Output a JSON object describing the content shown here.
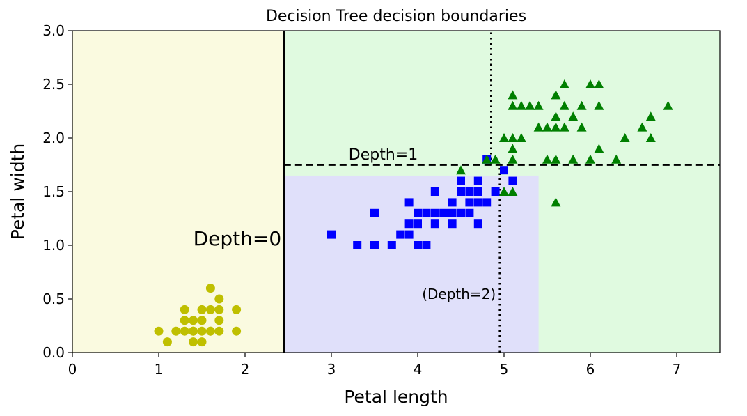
{
  "chart_data": {
    "type": "scatter",
    "title": "Decision Tree decision boundaries",
    "xlabel": "Petal length",
    "ylabel": "Petal width",
    "xlim": [
      0,
      7.5
    ],
    "ylim": [
      0,
      3
    ],
    "xticks": [
      "0",
      "1",
      "2",
      "3",
      "4",
      "5",
      "6",
      "7"
    ],
    "yticks": [
      "0.0",
      "0.5",
      "1.0",
      "1.5",
      "2.0",
      "2.5",
      "3.0"
    ],
    "grid": false,
    "regions": [
      {
        "x0": 0,
        "x1": 2.45,
        "y0": 0,
        "y1": 3,
        "color": "#fafae0"
      },
      {
        "x0": 2.45,
        "x1": 7.5,
        "y0": 0,
        "y1": 3,
        "color": "#e0fae0"
      },
      {
        "x0": 2.45,
        "x1": 5.4,
        "y0": 0,
        "y1": 1.65,
        "color": "#e0e0fa"
      }
    ],
    "boundaries": [
      {
        "type": "v",
        "x": 2.45,
        "y0": 0,
        "y1": 3,
        "style": "solid"
      },
      {
        "type": "h",
        "y": 1.75,
        "x0": 2.45,
        "x1": 7.5,
        "style": "dashed"
      },
      {
        "type": "v",
        "x": 4.95,
        "y0": 0,
        "y1": 1.75,
        "style": "dotted"
      },
      {
        "type": "v",
        "x": 4.85,
        "y0": 1.75,
        "y1": 3,
        "style": "dotted"
      }
    ],
    "annotations": [
      {
        "text": "Depth=0",
        "x": 1.4,
        "y": 1.0,
        "size": 28
      },
      {
        "text": "Depth=1",
        "x": 3.2,
        "y": 1.8,
        "size": 22
      },
      {
        "text": "(Depth=2)",
        "x": 4.05,
        "y": 0.5,
        "size": 20
      }
    ],
    "series": [
      {
        "marker": "circle",
        "color": "#bfbf00",
        "points": [
          [
            1.0,
            0.2
          ],
          [
            1.1,
            0.1
          ],
          [
            1.2,
            0.2
          ],
          [
            1.3,
            0.2
          ],
          [
            1.3,
            0.3
          ],
          [
            1.3,
            0.4
          ],
          [
            1.4,
            0.1
          ],
          [
            1.4,
            0.2
          ],
          [
            1.4,
            0.3
          ],
          [
            1.5,
            0.1
          ],
          [
            1.5,
            0.2
          ],
          [
            1.5,
            0.3
          ],
          [
            1.5,
            0.4
          ],
          [
            1.6,
            0.2
          ],
          [
            1.6,
            0.4
          ],
          [
            1.6,
            0.6
          ],
          [
            1.7,
            0.2
          ],
          [
            1.7,
            0.3
          ],
          [
            1.7,
            0.4
          ],
          [
            1.7,
            0.5
          ],
          [
            1.9,
            0.2
          ],
          [
            1.9,
            0.4
          ],
          [
            1.4,
            0.2
          ],
          [
            1.6,
            0.2
          ]
        ]
      },
      {
        "marker": "square",
        "color": "#0000ff",
        "points": [
          [
            3.0,
            1.1
          ],
          [
            3.3,
            1.0
          ],
          [
            3.5,
            1.0
          ],
          [
            3.5,
            1.3
          ],
          [
            3.7,
            1.0
          ],
          [
            3.8,
            1.1
          ],
          [
            3.9,
            1.1
          ],
          [
            3.9,
            1.2
          ],
          [
            3.9,
            1.4
          ],
          [
            4.0,
            1.0
          ],
          [
            4.0,
            1.2
          ],
          [
            4.0,
            1.3
          ],
          [
            4.1,
            1.0
          ],
          [
            4.1,
            1.3
          ],
          [
            4.2,
            1.2
          ],
          [
            4.2,
            1.3
          ],
          [
            4.2,
            1.5
          ],
          [
            4.3,
            1.3
          ],
          [
            4.4,
            1.2
          ],
          [
            4.4,
            1.3
          ],
          [
            4.4,
            1.4
          ],
          [
            4.5,
            1.3
          ],
          [
            4.5,
            1.5
          ],
          [
            4.5,
            1.6
          ],
          [
            4.6,
            1.3
          ],
          [
            4.6,
            1.4
          ],
          [
            4.6,
            1.5
          ],
          [
            4.7,
            1.2
          ],
          [
            4.7,
            1.4
          ],
          [
            4.7,
            1.5
          ],
          [
            4.7,
            1.6
          ],
          [
            4.8,
            1.4
          ],
          [
            4.8,
            1.8
          ],
          [
            4.9,
            1.5
          ],
          [
            5.0,
            1.7
          ],
          [
            5.1,
            1.6
          ]
        ]
      },
      {
        "marker": "triangle",
        "color": "#007f00",
        "points": [
          [
            4.5,
            1.7
          ],
          [
            4.8,
            1.8
          ],
          [
            4.9,
            1.8
          ],
          [
            5.0,
            1.5
          ],
          [
            5.0,
            2.0
          ],
          [
            5.1,
            1.5
          ],
          [
            5.1,
            1.8
          ],
          [
            5.1,
            1.9
          ],
          [
            5.1,
            2.0
          ],
          [
            5.1,
            2.3
          ],
          [
            5.1,
            2.4
          ],
          [
            5.2,
            2.0
          ],
          [
            5.2,
            2.3
          ],
          [
            5.3,
            2.3
          ],
          [
            5.4,
            2.1
          ],
          [
            5.4,
            2.3
          ],
          [
            5.5,
            1.8
          ],
          [
            5.5,
            2.1
          ],
          [
            5.6,
            1.4
          ],
          [
            5.6,
            1.8
          ],
          [
            5.6,
            2.1
          ],
          [
            5.6,
            2.2
          ],
          [
            5.6,
            2.4
          ],
          [
            5.7,
            2.1
          ],
          [
            5.7,
            2.3
          ],
          [
            5.7,
            2.5
          ],
          [
            5.8,
            1.8
          ],
          [
            5.8,
            2.2
          ],
          [
            5.9,
            2.1
          ],
          [
            5.9,
            2.3
          ],
          [
            6.0,
            1.8
          ],
          [
            6.0,
            2.5
          ],
          [
            6.1,
            1.9
          ],
          [
            6.1,
            2.3
          ],
          [
            6.1,
            2.5
          ],
          [
            6.3,
            1.8
          ],
          [
            6.4,
            2.0
          ],
          [
            6.6,
            2.1
          ],
          [
            6.7,
            2.0
          ],
          [
            6.7,
            2.2
          ],
          [
            6.9,
            2.3
          ]
        ]
      }
    ]
  }
}
